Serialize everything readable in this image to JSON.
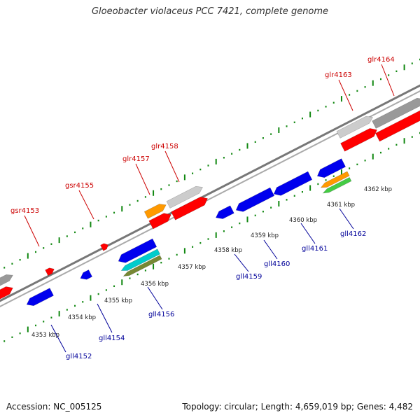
{
  "title": "Gloeobacter violaceus PCC 7421, complete genome",
  "footer": {
    "accession": "Accession: NC_005125",
    "topology": "Topology: circular; Length: 4,659,019 bp; Genes: 4,482"
  },
  "colors": {
    "forward_label": "#cc0000",
    "reverse_label": "#000099",
    "backbone": "#888888",
    "tick": "#118811",
    "gene_red": "#ff0000",
    "gene_blue": "#0000ee",
    "gene_grey": "#999999",
    "gene_light": "#cccccc",
    "gene_orange": "#ff9900",
    "gene_cyan": "#00cccc",
    "gene_green": "#44cc44",
    "gene_olive": "#778833"
  },
  "kbp_labels": [
    "4353 kbp",
    "4354 kbp",
    "4355 kbp",
    "4356 kbp",
    "4357 kbp",
    "4358 kbp",
    "4359 kbp",
    "4360 kbp",
    "4361 kbp",
    "4362 kbp"
  ],
  "forward_genes": [
    {
      "name": "gsr4153"
    },
    {
      "name": "gsr4155"
    },
    {
      "name": "glr4157"
    },
    {
      "name": "glr4158"
    },
    {
      "name": "glr4163"
    },
    {
      "name": "glr4164"
    }
  ],
  "reverse_genes": [
    {
      "name": "gll4152"
    },
    {
      "name": "gll4154"
    },
    {
      "name": "gll4156"
    },
    {
      "name": "gll4159"
    },
    {
      "name": "gll4160"
    },
    {
      "name": "gll4161"
    },
    {
      "name": "gll4162"
    }
  ]
}
